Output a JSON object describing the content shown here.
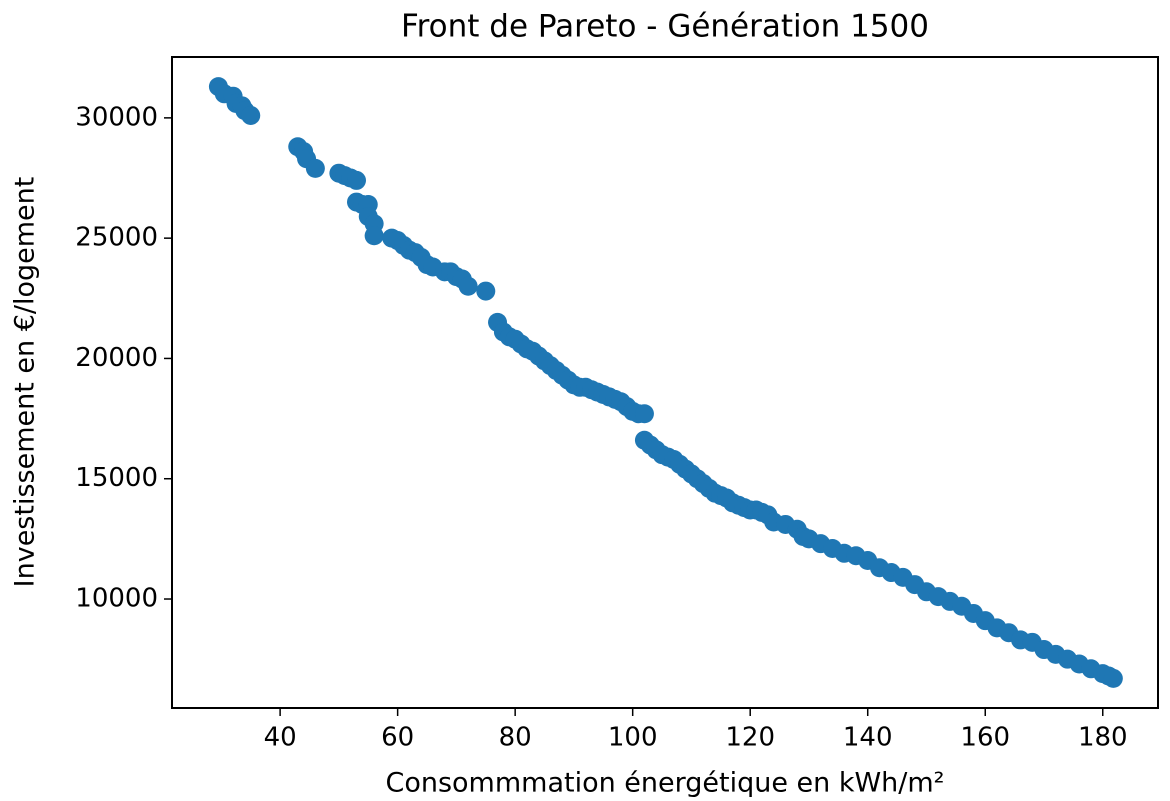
{
  "chart_data": {
    "type": "scatter",
    "title": "Front de Pareto - Génération 1500",
    "xlabel": "Consommmation énergétique en kWh/m²",
    "ylabel": "Investissement en €/logement",
    "color": "#1f77b4",
    "x": [
      29.5,
      30.5,
      32,
      32.5,
      33.5,
      34,
      35,
      43,
      44,
      44.5,
      46,
      50,
      51,
      52,
      53,
      53,
      54,
      55,
      55,
      56,
      56,
      59,
      60,
      61,
      62,
      63,
      64,
      65,
      66,
      68,
      69,
      70,
      71,
      72,
      75,
      77,
      78,
      79,
      80,
      81,
      82,
      83,
      84,
      85,
      86,
      87,
      88,
      89,
      90,
      91,
      92,
      93,
      94,
      95,
      96,
      97,
      98,
      99,
      100,
      101,
      102,
      102,
      103,
      104,
      105,
      106,
      107,
      108,
      109,
      110,
      111,
      112,
      113,
      114,
      115,
      116,
      117,
      118,
      119,
      120,
      121,
      122,
      123,
      124,
      126,
      128,
      129,
      130,
      132,
      134,
      136,
      138,
      140,
      142,
      144,
      146,
      148,
      150,
      152,
      154,
      156,
      158,
      160,
      162,
      164,
      166,
      168,
      170,
      172,
      174,
      176,
      178,
      180,
      181,
      181.8
    ],
    "values": [
      31300,
      31000,
      30900,
      30600,
      30500,
      30300,
      30100,
      28800,
      28600,
      28300,
      27900,
      27700,
      27600,
      27500,
      27400,
      26500,
      26400,
      26400,
      25900,
      25600,
      25100,
      25000,
      24900,
      24700,
      24500,
      24400,
      24200,
      23900,
      23800,
      23600,
      23600,
      23400,
      23300,
      23000,
      22800,
      21500,
      21100,
      20900,
      20800,
      20600,
      20400,
      20300,
      20100,
      19900,
      19700,
      19500,
      19300,
      19100,
      18900,
      18800,
      18800,
      18700,
      18600,
      18500,
      18400,
      18300,
      18200,
      18000,
      17800,
      17700,
      17700,
      16600,
      16400,
      16200,
      16000,
      15900,
      15800,
      15600,
      15400,
      15200,
      15000,
      14800,
      14600,
      14400,
      14300,
      14200,
      14000,
      13900,
      13800,
      13700,
      13700,
      13600,
      13500,
      13200,
      13100,
      12900,
      12600,
      12500,
      12300,
      12100,
      11900,
      11800,
      11600,
      11300,
      11100,
      10900,
      10600,
      10300,
      10100,
      9900,
      9700,
      9400,
      9100,
      8800,
      8600,
      8300,
      8200,
      7900,
      7700,
      7500,
      7300,
      7100,
      6900,
      6800,
      6700
    ],
    "xlim": [
      21.6,
      189.4
    ],
    "xticks": [
      40,
      60,
      80,
      100,
      120,
      140,
      160,
      180
    ],
    "ylim": [
      5470,
      32530
    ],
    "yticks": [
      10000,
      15000,
      20000,
      25000,
      30000
    ]
  }
}
